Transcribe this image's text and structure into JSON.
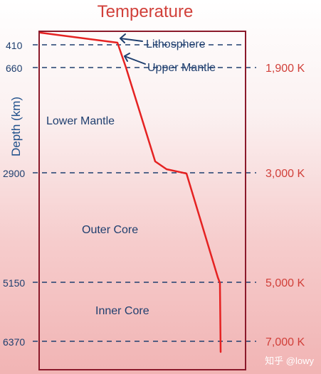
{
  "title": "Temperature",
  "axis_label": "Depth (km)",
  "layers": {
    "lithosphere": "Lithosphere",
    "upper_mantle": "Upper Mantle",
    "lower_mantle": "Lower Mantle",
    "outer_core": "Outer Core",
    "inner_core": "Inner Core"
  },
  "depth_labels": {
    "d410": "410",
    "d660": "660",
    "d2900": "2900",
    "d5150": "5150",
    "d6370": "6370"
  },
  "temperature_labels": {
    "t1900": "1,900 K",
    "t3000": "3,000 K",
    "t5000": "5,000 K",
    "t7000": "7,000 K"
  },
  "watermark": "知乎 @lowy",
  "colors": {
    "curve": "#e52222",
    "frame": "#8b1a2b",
    "dashed_lines": "#1f3f6f",
    "depth_text": "#1f3f6f",
    "temperature_text": "#d1403a"
  }
}
